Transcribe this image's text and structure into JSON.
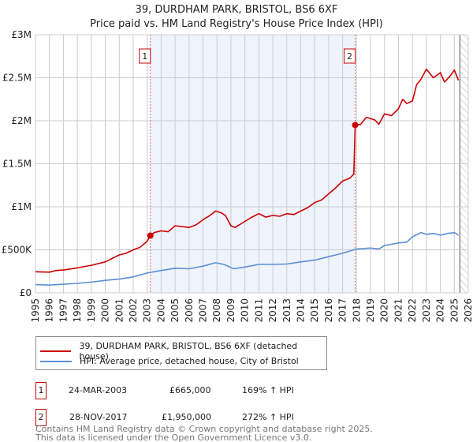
{
  "title": "39, DURDHAM PARK, BRISTOL, BS6 6XF",
  "subtitle": "Price paid vs. HM Land Registry's House Price Index (HPI)",
  "colors": {
    "property": "#cc0000",
    "hpi": "#5b8fd4",
    "shade": "#eef3fc",
    "marker_border": "#cc0000"
  },
  "chart_data": {
    "type": "line",
    "title": "39, DURDHAM PARK, BRISTOL, BS6 6XF",
    "xlabel": "",
    "ylabel": "",
    "xlim": [
      1995,
      2026
    ],
    "ylim": [
      0,
      3000000
    ],
    "x_ticks": [
      "1995",
      "1996",
      "1997",
      "1998",
      "1999",
      "2000",
      "2001",
      "2002",
      "2003",
      "2004",
      "2005",
      "2006",
      "2007",
      "2008",
      "2009",
      "2010",
      "2011",
      "2012",
      "2013",
      "2014",
      "2015",
      "2016",
      "2017",
      "2018",
      "2019",
      "2020",
      "2021",
      "2022",
      "2023",
      "2024",
      "2025",
      "2026"
    ],
    "y_ticks": [
      {
        "value": 0,
        "label": "£0"
      },
      {
        "value": 500000,
        "label": "£500K"
      },
      {
        "value": 1000000,
        "label": "£1M"
      },
      {
        "value": 1500000,
        "label": "£1.5M"
      },
      {
        "value": 2000000,
        "label": "£2M"
      },
      {
        "value": 2500000,
        "label": "£2.5M"
      },
      {
        "value": 3000000,
        "label": "£3M"
      }
    ],
    "grid": true,
    "forecast_hatch_from": 2025.4,
    "shaded_range": [
      2003.23,
      2017.9
    ],
    "series": [
      {
        "name": "39, DURDHAM PARK, BRISTOL, BS6 6XF (detached house)",
        "x": [
          1995,
          1996,
          1996.5,
          1997,
          1998,
          1999,
          2000,
          2000.5,
          2001,
          2001.5,
          2002,
          2002.5,
          2003,
          2003.23,
          2003.5,
          2004,
          2004.5,
          2005,
          2006,
          2006.5,
          2007,
          2007.5,
          2007.9,
          2008.3,
          2008.6,
          2009,
          2009.3,
          2010,
          2010.5,
          2011,
          2011.5,
          2012,
          2012.5,
          2013,
          2013.5,
          2014,
          2014.5,
          2015,
          2015.5,
          2016,
          2016.5,
          2017,
          2017.5,
          2017.8,
          2017.9,
          2018.3,
          2018.7,
          2019.3,
          2019.6,
          2020,
          2020.5,
          2021,
          2021.3,
          2021.6,
          2022,
          2022.3,
          2022.6,
          2023,
          2023.5,
          2024,
          2024.3,
          2024.7,
          2025,
          2025.3
        ],
        "y": [
          245000,
          240000,
          260000,
          265000,
          290000,
          320000,
          360000,
          400000,
          440000,
          460000,
          500000,
          530000,
          600000,
          665000,
          700000,
          720000,
          710000,
          780000,
          760000,
          790000,
          850000,
          900000,
          950000,
          930000,
          900000,
          780000,
          760000,
          830000,
          880000,
          920000,
          880000,
          900000,
          890000,
          920000,
          910000,
          950000,
          990000,
          1050000,
          1080000,
          1150000,
          1220000,
          1300000,
          1330000,
          1380000,
          1950000,
          1960000,
          2040000,
          2010000,
          1960000,
          2080000,
          2060000,
          2140000,
          2250000,
          2200000,
          2230000,
          2420000,
          2480000,
          2600000,
          2500000,
          2560000,
          2450000,
          2520000,
          2590000,
          2470000
        ]
      },
      {
        "name": "HPI: Average price, detached house, City of Bristol",
        "x": [
          1995,
          1996,
          1997,
          1998,
          1999,
          2000,
          2001,
          2002,
          2003,
          2004,
          2005,
          2006,
          2007,
          2007.9,
          2008.5,
          2009.2,
          2010,
          2011,
          2012,
          2013,
          2014,
          2015,
          2016,
          2017,
          2018,
          2019,
          2019.6,
          2020,
          2021,
          2021.6,
          2022,
          2022.6,
          2023,
          2023.5,
          2024,
          2024.5,
          2025,
          2025.3
        ],
        "y": [
          95000,
          90000,
          100000,
          110000,
          125000,
          145000,
          160000,
          185000,
          230000,
          260000,
          285000,
          280000,
          310000,
          350000,
          330000,
          280000,
          300000,
          330000,
          330000,
          335000,
          360000,
          380000,
          420000,
          460000,
          510000,
          520000,
          510000,
          550000,
          580000,
          590000,
          650000,
          700000,
          680000,
          690000,
          670000,
          690000,
          700000,
          670000
        ]
      }
    ],
    "sales": [
      {
        "label": "1",
        "x": 2003.23,
        "y": 665000
      },
      {
        "label": "2",
        "x": 2017.9,
        "y": 1950000
      }
    ]
  },
  "legend": {
    "property": "39, DURDHAM PARK, BRISTOL, BS6 6XF (detached house)",
    "hpi": "HPI: Average price, detached house, City of Bristol"
  },
  "transactions": [
    {
      "num": "1",
      "date": "24-MAR-2003",
      "price": "£665,000",
      "hpi": "169% ↑ HPI"
    },
    {
      "num": "2",
      "date": "28-NOV-2017",
      "price": "£1,950,000",
      "hpi": "272% ↑ HPI"
    }
  ],
  "footer": {
    "line1": "Contains HM Land Registry data © Crown copyright and database right 2025.",
    "line2": "This data is licensed under the Open Government Licence v3.0."
  }
}
